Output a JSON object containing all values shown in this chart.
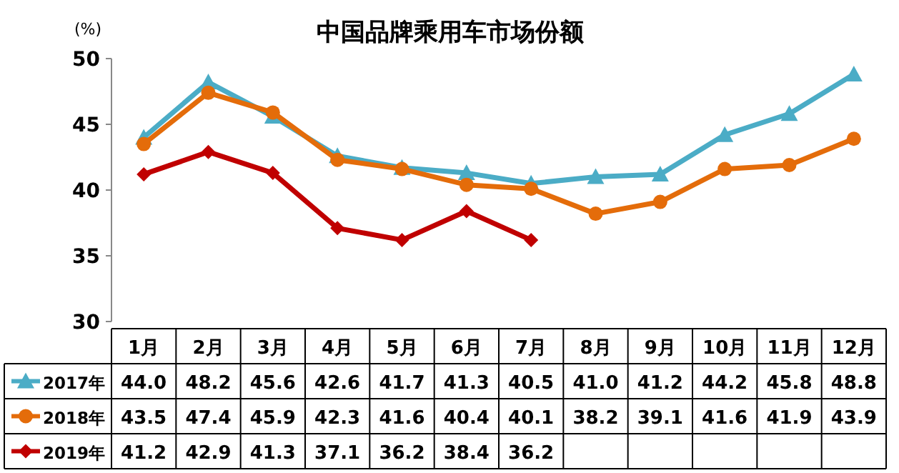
{
  "chart_data": {
    "type": "line",
    "title": "中国品牌乘用车市场份额",
    "ylabel": "(%)",
    "categories": [
      "1月",
      "2月",
      "3月",
      "4月",
      "5月",
      "6月",
      "7月",
      "8月",
      "9月",
      "10月",
      "11月",
      "12月"
    ],
    "series": [
      {
        "name": "2017年",
        "color": "#4bacc6",
        "marker": "triangle",
        "values": [
          44.0,
          48.2,
          45.6,
          42.6,
          41.7,
          41.3,
          40.5,
          41.0,
          41.2,
          44.2,
          45.8,
          48.8
        ],
        "value_labels": [
          "44.0",
          "48.2",
          "45.6",
          "42.6",
          "41.7",
          "41.3",
          "40.5",
          "41.0",
          "41.2",
          "44.2",
          "45.8",
          "48.8"
        ]
      },
      {
        "name": "2018年",
        "color": "#e46c0a",
        "marker": "circle",
        "values": [
          43.5,
          47.4,
          45.9,
          42.3,
          41.6,
          40.4,
          40.1,
          38.2,
          39.1,
          41.6,
          41.9,
          43.9
        ],
        "value_labels": [
          "43.5",
          "47.4",
          "45.9",
          "42.3",
          "41.6",
          "40.4",
          "40.1",
          "38.2",
          "39.1",
          "41.6",
          "41.9",
          "43.9"
        ]
      },
      {
        "name": "2019年",
        "color": "#c00000",
        "marker": "diamond",
        "values": [
          41.2,
          42.9,
          41.3,
          37.1,
          36.2,
          38.4,
          36.2,
          null,
          null,
          null,
          null,
          null
        ],
        "value_labels": [
          "41.2",
          "42.9",
          "41.3",
          "37.1",
          "36.2",
          "38.4",
          "36.2",
          null,
          null,
          null,
          null,
          null
        ]
      }
    ],
    "ylim": [
      30,
      50
    ],
    "yticks": [
      30,
      35,
      40,
      45,
      50
    ],
    "legend": "bottom",
    "grid": false
  }
}
